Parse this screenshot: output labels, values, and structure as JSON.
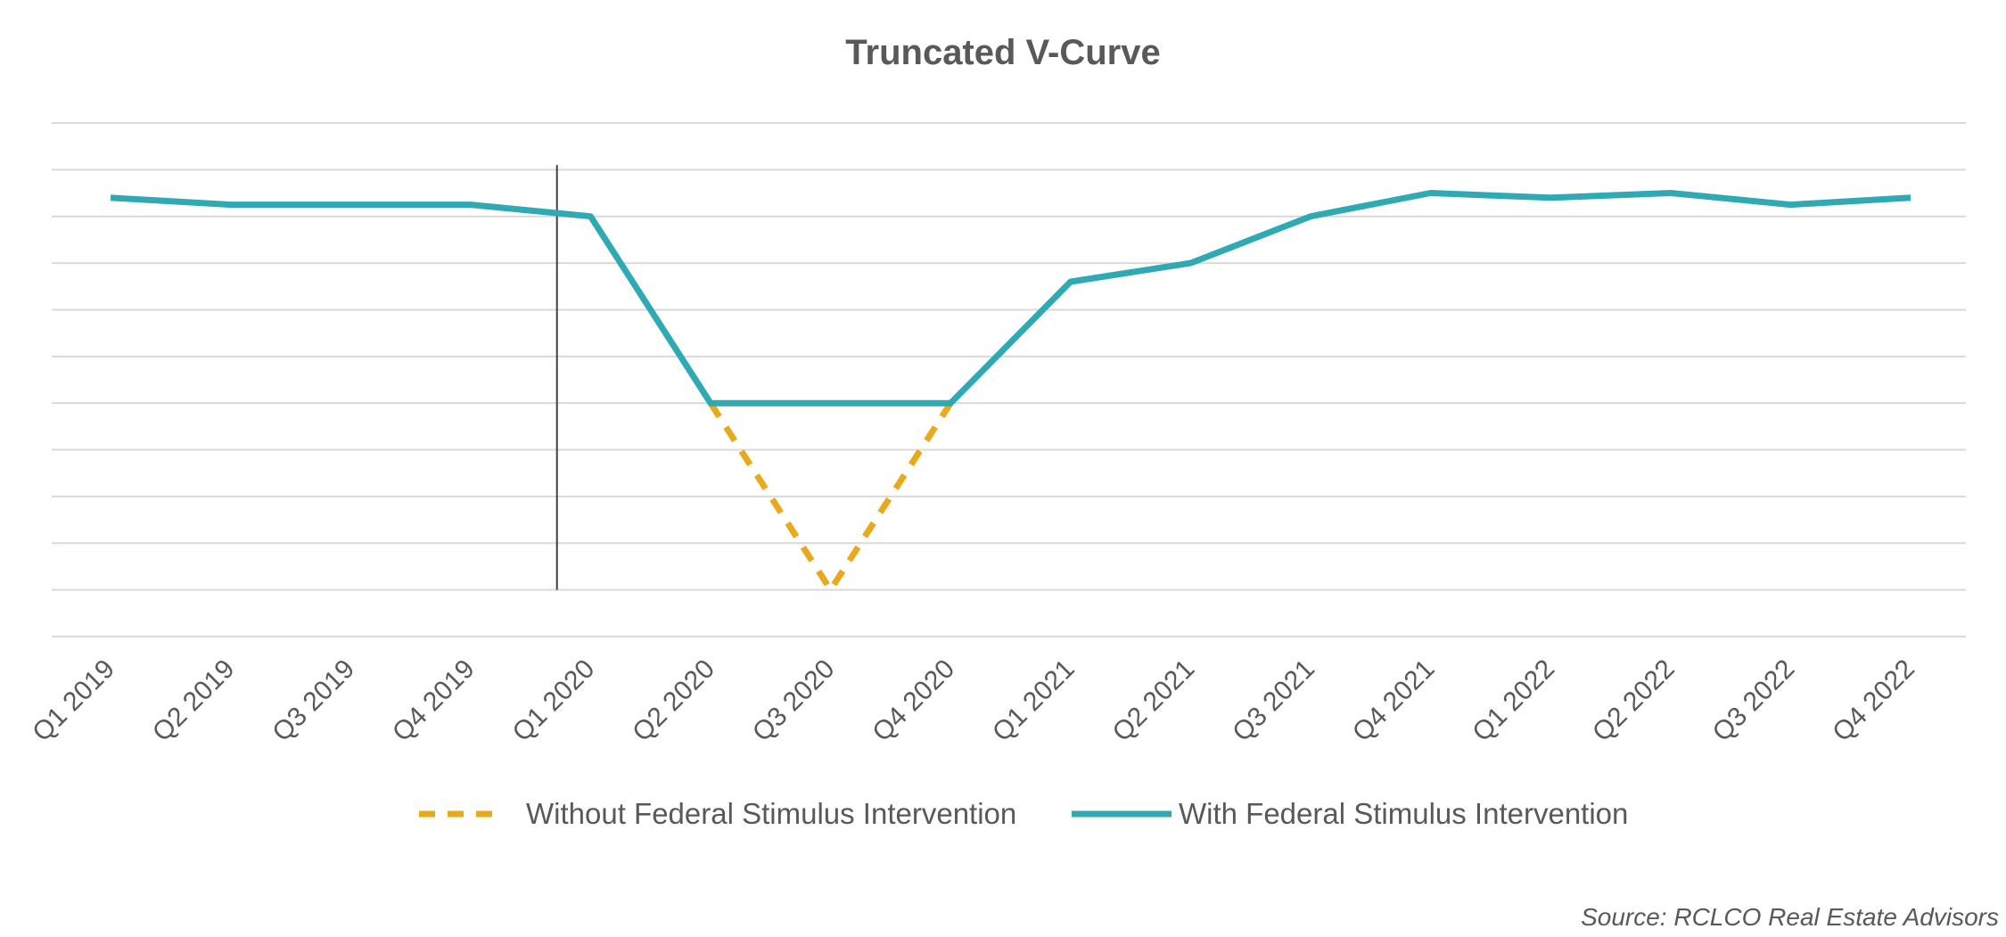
{
  "chart_data": {
    "type": "line",
    "title": "Truncated V-Curve",
    "xlabel": "",
    "ylabel": "",
    "categories": [
      "Q1 2019",
      "Q2 2019",
      "Q3 2019",
      "Q4 2019",
      "Q1 2020",
      "Q2 2020",
      "Q3 2020",
      "Q4 2020",
      "Q1 2021",
      "Q2 2021",
      "Q3 2021",
      "Q4 2021",
      "Q1 2022",
      "Q2 2022",
      "Q3 2022",
      "Q4 2022"
    ],
    "ylim": [
      0,
      11
    ],
    "y_ticks_visible": false,
    "grid": true,
    "legend_position": "bottom",
    "event_marker": {
      "between": [
        "Q4 2019",
        "Q1 2020"
      ],
      "position": 0.72,
      "y_top": 10.1,
      "y_bottom": 1
    },
    "series": [
      {
        "name": "Without Federal Stimulus Intervention",
        "color": "#E8A91C",
        "style": "dashed",
        "values": [
          null,
          null,
          null,
          null,
          null,
          5,
          1,
          5,
          null,
          null,
          null,
          null,
          null,
          null,
          null,
          null
        ]
      },
      {
        "name": "With Federal Stimulus Intervention",
        "color": "#2FA9B4",
        "style": "solid",
        "values": [
          9.4,
          9.25,
          9.25,
          9.25,
          9.0,
          5,
          5,
          5,
          7.6,
          8.0,
          9.0,
          9.5,
          9.4,
          9.5,
          9.25,
          9.4
        ]
      }
    ],
    "source": "Source: RCLCO Real Estate Advisors"
  },
  "colors": {
    "gridline": "#D9D9D9",
    "text": "#595959",
    "event_line": "#404040"
  }
}
